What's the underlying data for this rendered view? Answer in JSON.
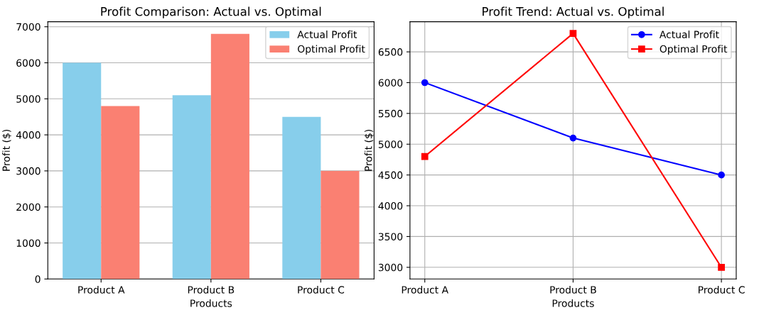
{
  "chart_data": [
    {
      "type": "bar",
      "title": "Profit Comparison: Actual vs. Optimal",
      "xlabel": "Products",
      "ylabel": "Profit ($)",
      "categories": [
        "Product A",
        "Product B",
        "Product C"
      ],
      "series": [
        {
          "name": "Actual Profit",
          "color": "#87ceeb",
          "values": [
            6000,
            5100,
            4500
          ]
        },
        {
          "name": "Optimal Profit",
          "color": "#fa8072",
          "values": [
            4800,
            6800,
            3000
          ]
        }
      ],
      "ylim": [
        0,
        7140
      ],
      "yticks": [
        0,
        1000,
        2000,
        3000,
        4000,
        5000,
        6000,
        7000
      ],
      "grid": "y",
      "legend": "top right"
    },
    {
      "type": "line",
      "title": "Profit Trend: Actual vs. Optimal",
      "xlabel": "Products",
      "ylabel": "Profit ($)",
      "categories": [
        "Product A",
        "Product B",
        "Product C"
      ],
      "series": [
        {
          "name": "Actual Profit",
          "color": "#0000ff",
          "values": [
            6000,
            5100,
            4500
          ],
          "marker": "circle"
        },
        {
          "name": "Optimal Profit",
          "color": "#ff0000",
          "values": [
            4800,
            6800,
            3000
          ],
          "marker": "square"
        }
      ],
      "ylim": [
        2810,
        6990
      ],
      "yticks": [
        3000,
        3500,
        4000,
        4500,
        5000,
        5500,
        6000,
        6500
      ],
      "grid": true,
      "legend": "top right"
    }
  ]
}
